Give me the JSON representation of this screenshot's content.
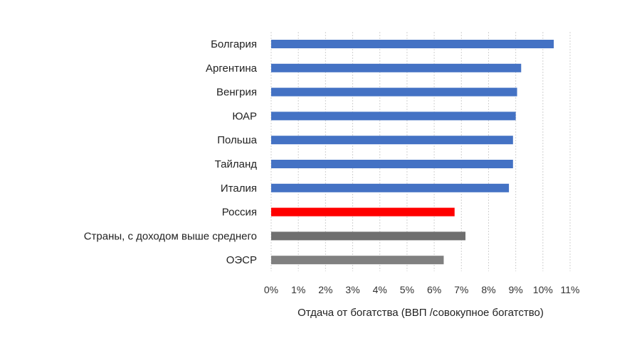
{
  "chart_data": {
    "type": "bar",
    "orientation": "horizontal",
    "categories": [
      "Болгария",
      "Аргентина",
      "Венгрия",
      "ЮАР",
      "Польша",
      "Тайланд",
      "Италия",
      "Россия",
      "Страны, с доходом выше среднего",
      "ОЭСР"
    ],
    "values": [
      10.4,
      9.2,
      9.05,
      9.0,
      8.9,
      8.9,
      8.75,
      6.75,
      7.15,
      6.35
    ],
    "bar_colors": [
      "#4472c4",
      "#4472c4",
      "#4472c4",
      "#4472c4",
      "#4472c4",
      "#4472c4",
      "#4472c4",
      "#ff0000",
      "#6f6f6f",
      "#808080"
    ],
    "xlabel": "Отдача от богатства (ВВП /совокупное богатство)",
    "xlim": [
      0,
      11
    ],
    "xticks": [
      0,
      1,
      2,
      3,
      4,
      5,
      6,
      7,
      8,
      9,
      10,
      11
    ],
    "xtick_labels": [
      "0%",
      "1%",
      "2%",
      "3%",
      "4%",
      "5%",
      "6%",
      "7%",
      "8%",
      "9%",
      "10%",
      "11%"
    ],
    "grid": "vertical-dashed",
    "legend": "none"
  }
}
